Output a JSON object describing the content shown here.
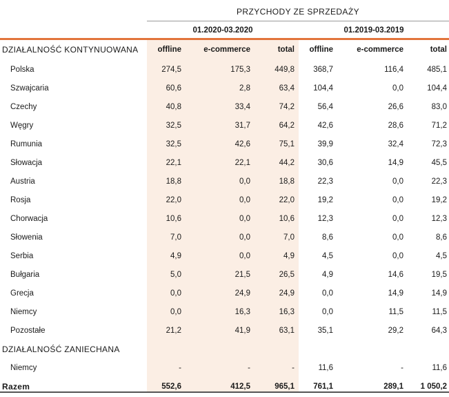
{
  "header": {
    "title": "PRZYCHODY ZE SPRZEDAŻY",
    "period1": "01.2020-03.2020",
    "period2": "01.2019-03.2019"
  },
  "columns": {
    "section": "DZIAŁALNOŚĆ KONTYNUOWANA",
    "offline": "offline",
    "ecommerce": "e-commerce",
    "total": "total"
  },
  "continued": [
    {
      "name": "Polska",
      "v": [
        "274,5",
        "175,3",
        "449,8",
        "368,7",
        "116,4",
        "485,1"
      ]
    },
    {
      "name": "Szwajcaria",
      "v": [
        "60,6",
        "2,8",
        "63,4",
        "104,4",
        "0,0",
        "104,4"
      ]
    },
    {
      "name": "Czechy",
      "v": [
        "40,8",
        "33,4",
        "74,2",
        "56,4",
        "26,6",
        "83,0"
      ]
    },
    {
      "name": "Węgry",
      "v": [
        "32,5",
        "31,7",
        "64,2",
        "42,6",
        "28,6",
        "71,2"
      ]
    },
    {
      "name": "Rumunia",
      "v": [
        "32,5",
        "42,6",
        "75,1",
        "39,9",
        "32,4",
        "72,3"
      ]
    },
    {
      "name": "Słowacja",
      "v": [
        "22,1",
        "22,1",
        "44,2",
        "30,6",
        "14,9",
        "45,5"
      ]
    },
    {
      "name": "Austria",
      "v": [
        "18,8",
        "0,0",
        "18,8",
        "22,3",
        "0,0",
        "22,3"
      ]
    },
    {
      "name": "Rosja",
      "v": [
        "22,0",
        "0,0",
        "22,0",
        "19,2",
        "0,0",
        "19,2"
      ]
    },
    {
      "name": "Chorwacja",
      "v": [
        "10,6",
        "0,0",
        "10,6",
        "12,3",
        "0,0",
        "12,3"
      ]
    },
    {
      "name": "Słowenia",
      "v": [
        "7,0",
        "0,0",
        "7,0",
        "8,6",
        "0,0",
        "8,6"
      ]
    },
    {
      "name": "Serbia",
      "v": [
        "4,9",
        "0,0",
        "4,9",
        "4,5",
        "0,0",
        "4,5"
      ]
    },
    {
      "name": "Bułgaria",
      "v": [
        "5,0",
        "21,5",
        "26,5",
        "4,9",
        "14,6",
        "19,5"
      ]
    },
    {
      "name": "Grecja",
      "v": [
        "0,0",
        "24,9",
        "24,9",
        "0,0",
        "14,9",
        "14,9"
      ]
    },
    {
      "name": "Niemcy",
      "v": [
        "0,0",
        "16,3",
        "16,3",
        "0,0",
        "11,5",
        "11,5"
      ]
    },
    {
      "name": "Pozostałe",
      "v": [
        "21,2",
        "41,9",
        "63,1",
        "35,1",
        "29,2",
        "64,3"
      ]
    }
  ],
  "discontinued": {
    "section": "DZIAŁALNOŚĆ ZANIECHANA",
    "rows": [
      {
        "name": "Niemcy",
        "v": [
          "-",
          "-",
          "-",
          "11,6",
          "-",
          "11,6"
        ]
      }
    ]
  },
  "total": {
    "name": "Razem",
    "v": [
      "552,6",
      "412,5",
      "965,1",
      "761,1",
      "289,1",
      "1 050,2"
    ]
  }
}
